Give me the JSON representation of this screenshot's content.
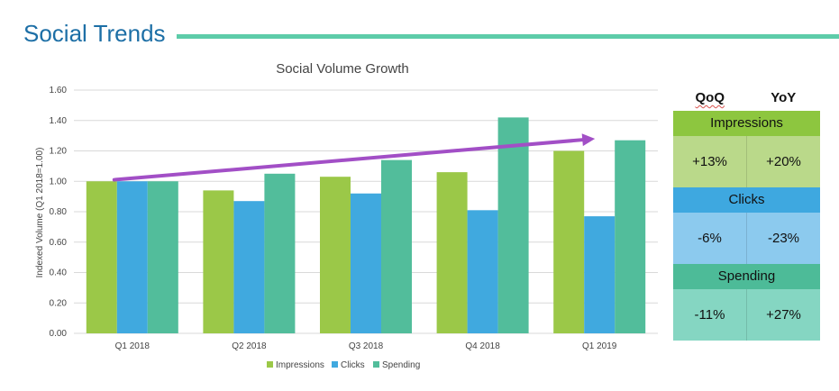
{
  "header": {
    "title": "Social Trends"
  },
  "chart_data": {
    "type": "bar",
    "title": "Social Volume Growth",
    "ylabel": "Indexed Volume (Q1 2018=1.00)",
    "xlabel": "",
    "categories": [
      "Q1 2018",
      "Q2 2018",
      "Q3 2018",
      "Q4 2018",
      "Q1 2019"
    ],
    "series": [
      {
        "name": "Impressions",
        "color": "#9bc848",
        "values": [
          1.0,
          0.94,
          1.03,
          1.06,
          1.2
        ]
      },
      {
        "name": "Clicks",
        "color": "#40a9df",
        "values": [
          1.0,
          0.87,
          0.92,
          0.81,
          0.77
        ]
      },
      {
        "name": "Spending",
        "color": "#52bd9b",
        "values": [
          1.0,
          1.05,
          1.14,
          1.42,
          1.27
        ]
      }
    ],
    "ylim": [
      0,
      1.6
    ],
    "yticks": [
      "0.00",
      "0.20",
      "0.40",
      "0.60",
      "0.80",
      "1.00",
      "1.20",
      "1.40",
      "1.60"
    ],
    "grid": true,
    "legend_position": "bottom",
    "trend_arrow": {
      "from": {
        "category": "Q1 2018",
        "value": 1.01
      },
      "to": {
        "category": "Q1 2019",
        "value": 1.28
      },
      "color": "#a24fc6"
    }
  },
  "metrics": {
    "headers": [
      "QoQ",
      "YoY"
    ],
    "groups": [
      {
        "name": "Impressions",
        "qoq": "+13%",
        "yoy": "+20%",
        "header_color": "#8dc63f",
        "body_color": "#bad98a"
      },
      {
        "name": "Clicks",
        "qoq": "-6%",
        "yoy": "-23%",
        "header_color": "#3ea8e0",
        "body_color": "#8ccaee"
      },
      {
        "name": "Spending",
        "qoq": "-11%",
        "yoy": "+27%",
        "header_color": "#4dbb98",
        "body_color": "#85d6c2"
      }
    ]
  }
}
